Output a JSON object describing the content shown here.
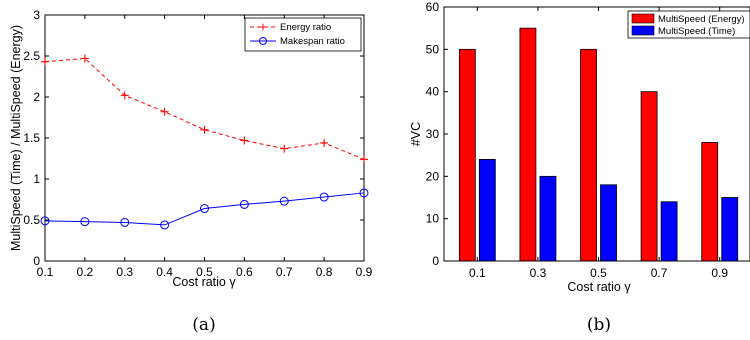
{
  "chart_data": [
    {
      "type": "line",
      "caption": "(a)",
      "xlabel": "Cost ratio γ",
      "ylabel": "MultiSpeed (Time) / MultiSpeed (Energy)",
      "xlim": [
        0.1,
        0.9
      ],
      "ylim": [
        0,
        3
      ],
      "x": [
        0.1,
        0.2,
        0.3,
        0.4,
        0.5,
        0.6,
        0.7,
        0.8,
        0.9
      ],
      "xticks": [
        "0.1",
        "0.2",
        "0.3",
        "0.4",
        "0.5",
        "0.6",
        "0.7",
        "0.8",
        "0.9"
      ],
      "yticks": [
        "0",
        "0.5",
        "1",
        "1.5",
        "2",
        "2.5",
        "3"
      ],
      "legend_position": "top-right",
      "series": [
        {
          "name": "Energy ratio",
          "color": "#ff0000",
          "line": "dashed",
          "marker": "plus",
          "values": [
            2.43,
            2.47,
            2.02,
            1.82,
            1.6,
            1.47,
            1.37,
            1.44,
            1.24
          ]
        },
        {
          "name": "Makespan ratio",
          "color": "#0000ff",
          "line": "solid",
          "marker": "circle",
          "values": [
            0.49,
            0.48,
            0.47,
            0.44,
            0.64,
            0.69,
            0.73,
            0.78,
            0.83
          ]
        }
      ]
    },
    {
      "type": "bar",
      "caption": "(b)",
      "xlabel": "Cost ratio γ",
      "ylabel": "#VC",
      "ylim": [
        0,
        60
      ],
      "categories": [
        "0.1",
        "0.3",
        "0.5",
        "0.7",
        "0.9"
      ],
      "yticks": [
        "0",
        "10",
        "20",
        "30",
        "40",
        "50",
        "60"
      ],
      "legend_position": "top-right",
      "series": [
        {
          "name": "MultiSpeed (Energy)",
          "color": "#ff0000",
          "values": [
            50,
            55,
            50,
            40,
            28
          ]
        },
        {
          "name": "MultiSpeed (Time)",
          "color": "#0000ff",
          "values": [
            24,
            20,
            18,
            14,
            15
          ]
        }
      ]
    }
  ]
}
